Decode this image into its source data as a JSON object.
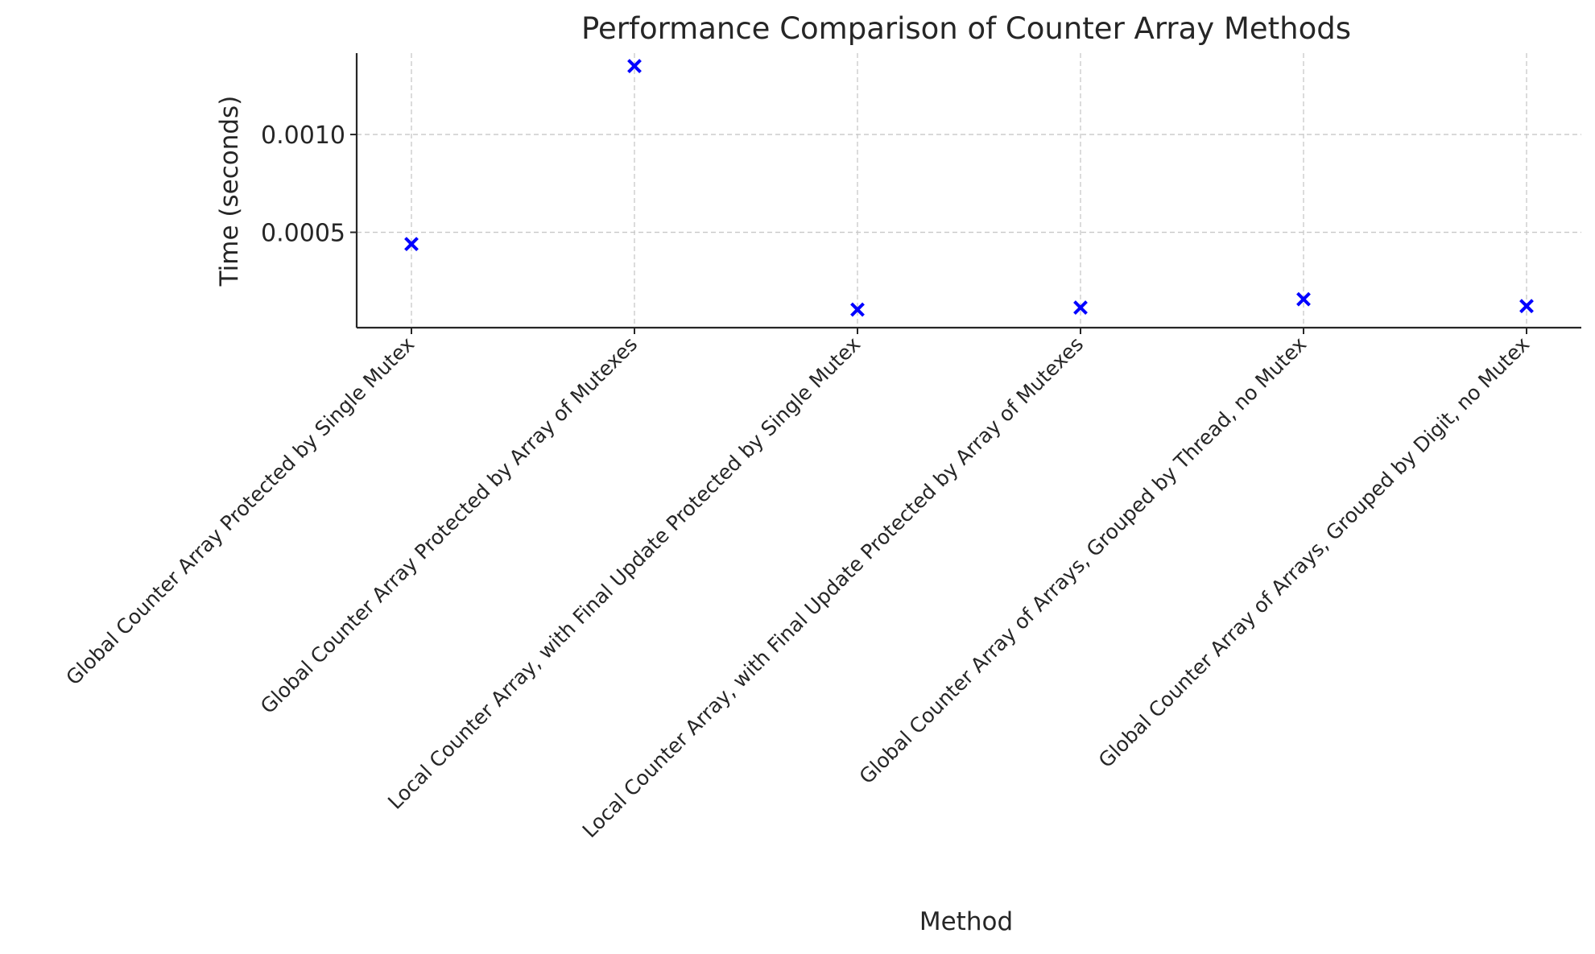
{
  "chart_data": {
    "type": "scatter",
    "title": "Performance Comparison of Counter Array Methods",
    "xlabel": "Method",
    "ylabel": "Time (seconds)",
    "categories": [
      "Global Counter Array Protected by Single Mutex",
      "Global Counter Array Protected by Array of Mutexes",
      "Local Counter Array, with Final Update Protected by Single Mutex",
      "Local Counter Array, with Final Update Protected by Array of Mutexes",
      "Global Counter Array of Arrays, Grouped by Thread, no Mutex",
      "Global Counter Array of Arrays, Grouped by Digit, no Mutex"
    ],
    "values": [
      0.00044,
      0.00135,
      0.000105,
      0.000115,
      0.000158,
      0.000123
    ],
    "ylim": [
      1.25e-05,
      0.001416
    ],
    "yticks": [
      0.0005,
      0.001
    ],
    "ytick_labels": [
      "0.0005",
      "0.0010"
    ],
    "grid": true,
    "marker": "x",
    "marker_color": "#0000ff"
  }
}
